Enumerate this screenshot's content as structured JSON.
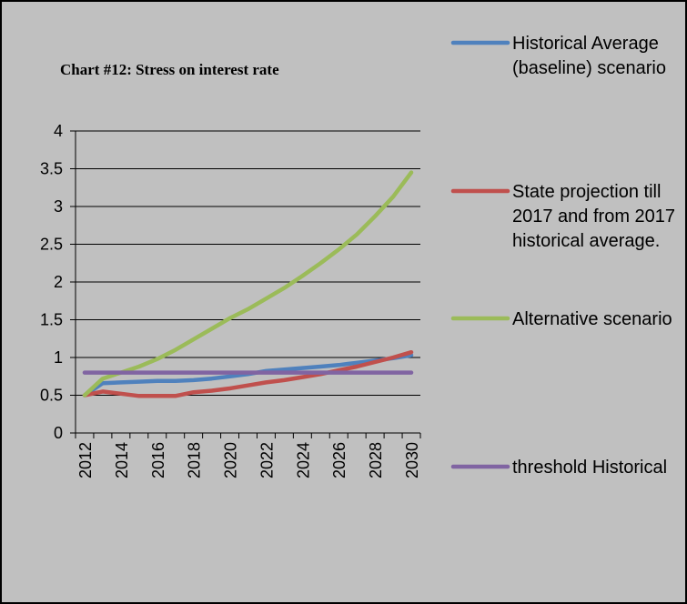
{
  "chart_data": {
    "type": "line",
    "title": "Chart #12: Stress on interest rate",
    "categories": [
      "2012",
      null,
      "2014",
      null,
      "2016",
      null,
      "2018",
      null,
      "2020",
      null,
      "2022",
      null,
      "2024",
      null,
      "2026",
      null,
      "2028",
      null,
      "2030"
    ],
    "series": [
      {
        "name": "Historical Average (baseline) scenario",
        "color": "#4f81bd",
        "values": [
          0.5,
          0.66,
          0.67,
          0.68,
          0.69,
          0.69,
          0.7,
          0.72,
          0.75,
          0.78,
          0.82,
          0.84,
          0.86,
          0.88,
          0.9,
          0.93,
          0.96,
          0.99,
          1.03
        ]
      },
      {
        "name": "State projection till 2017 and from 2017 historical average.",
        "color": "#c0504d",
        "values": [
          0.5,
          0.55,
          0.52,
          0.49,
          0.49,
          0.49,
          0.54,
          0.56,
          0.59,
          0.63,
          0.67,
          0.7,
          0.74,
          0.78,
          0.83,
          0.88,
          0.94,
          1.0,
          1.07
        ]
      },
      {
        "name": "Alternative scenario",
        "color": "#9bbb59",
        "values": [
          0.5,
          0.72,
          0.8,
          0.88,
          0.98,
          1.1,
          1.24,
          1.38,
          1.52,
          1.64,
          1.78,
          1.92,
          2.08,
          2.25,
          2.43,
          2.63,
          2.87,
          3.13,
          3.45
        ]
      },
      {
        "name": "threshold Historical",
        "color": "#8064a2",
        "values": [
          0.8,
          0.8,
          0.8,
          0.8,
          0.8,
          0.8,
          0.8,
          0.8,
          0.8,
          0.8,
          0.8,
          0.8,
          0.8,
          0.8,
          0.8,
          0.8,
          0.8,
          0.8,
          0.8
        ]
      }
    ],
    "ylim": [
      0,
      4
    ],
    "yticks": [
      0,
      0.5,
      1,
      1.5,
      2,
      2.5,
      3,
      3.5,
      4
    ],
    "grid": true
  }
}
